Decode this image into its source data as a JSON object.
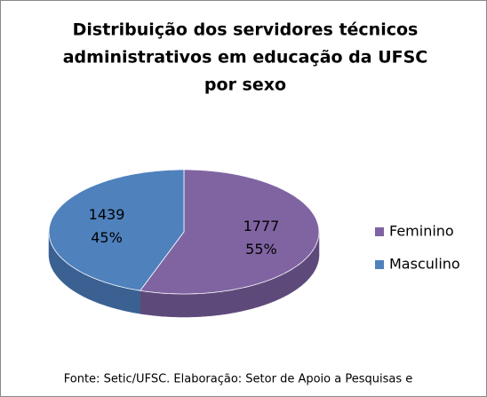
{
  "chart_data": {
    "type": "pie3d",
    "title": [
      "Distribuição dos servidores técnicos",
      "administrativos em educação da UFSC",
      "por sexo"
    ],
    "categories": [
      "Feminino",
      "Masculino"
    ],
    "values": [
      1777,
      1439
    ],
    "percent_values": [
      55,
      45
    ],
    "percent_labels": [
      "55%",
      "45%"
    ],
    "colors": [
      "#8064a2",
      "#4f81bd"
    ],
    "side_colors": [
      "#5e4a7a",
      "#3a6192"
    ],
    "legend": "right",
    "source": "Fonte: Setic/UFSC. Elaboração: Setor de Apoio a Pesquisas e"
  }
}
